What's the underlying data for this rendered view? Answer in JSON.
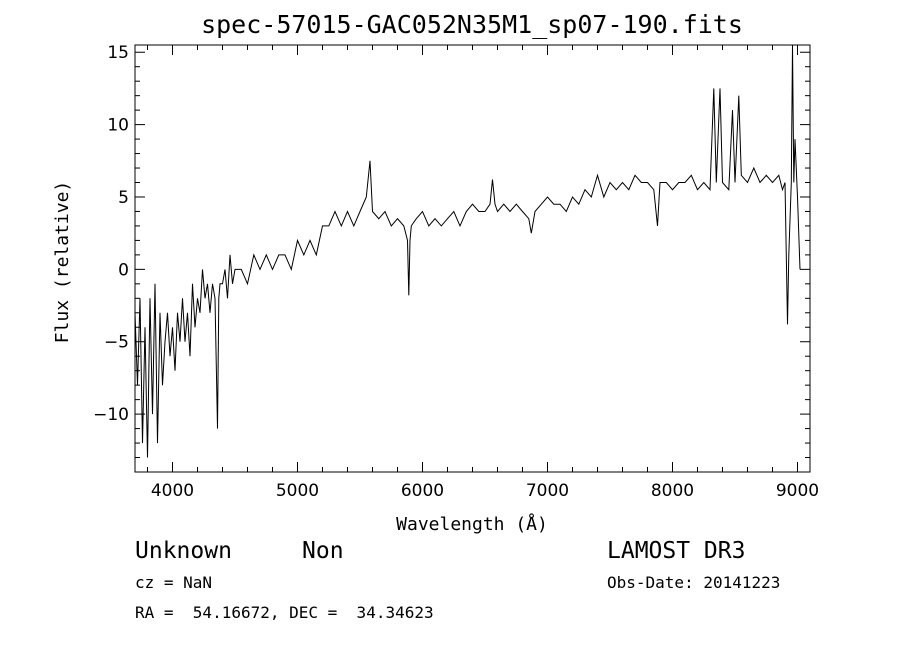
{
  "chart_data": {
    "type": "line",
    "title": "spec-57015-GAC052N35M1_sp07-190.fits",
    "xlabel": "Wavelength (Å)",
    "ylabel": "Flux (relative)",
    "xlim": [
      3700,
      9100
    ],
    "ylim": [
      -14,
      15.5
    ],
    "xticks": [
      4000,
      5000,
      6000,
      7000,
      8000,
      9000
    ],
    "xtick_labels": [
      "4000",
      "5000",
      "6000",
      "7000",
      "8000",
      "9000"
    ],
    "yticks": [
      -10,
      -5,
      0,
      5,
      10,
      15
    ],
    "ytick_labels": [
      "−10",
      "−5",
      "0",
      "5",
      "10",
      "15"
    ],
    "grid": false,
    "line_color": "#000000",
    "series": [
      {
        "x": [
          3700,
          3720,
          3740,
          3760,
          3780,
          3800,
          3820,
          3840,
          3860,
          3880,
          3900,
          3920,
          3940,
          3960,
          3980,
          4000,
          4020,
          4040,
          4060,
          4080,
          4100,
          4120,
          4140,
          4160,
          4180,
          4200,
          4220,
          4240,
          4260,
          4280,
          4300,
          4320,
          4340,
          4360,
          4370,
          4380,
          4400,
          4420,
          4440,
          4460,
          4480,
          4500,
          4550,
          4600,
          4650,
          4700,
          4750,
          4800,
          4850,
          4900,
          4950,
          5000,
          5050,
          5100,
          5150,
          5200,
          5250,
          5300,
          5350,
          5400,
          5450,
          5500,
          5550,
          5580,
          5600,
          5650,
          5700,
          5750,
          5800,
          5850,
          5880,
          5890,
          5900,
          5910,
          5950,
          6000,
          6050,
          6100,
          6150,
          6200,
          6250,
          6300,
          6350,
          6400,
          6450,
          6500,
          6540,
          6560,
          6580,
          6600,
          6650,
          6700,
          6750,
          6800,
          6850,
          6870,
          6900,
          6950,
          7000,
          7050,
          7100,
          7150,
          7200,
          7250,
          7300,
          7350,
          7400,
          7450,
          7500,
          7550,
          7600,
          7650,
          7700,
          7750,
          7800,
          7850,
          7880,
          7900,
          7950,
          8000,
          8050,
          8100,
          8150,
          8200,
          8250,
          8300,
          8330,
          8350,
          8380,
          8400,
          8450,
          8480,
          8500,
          8530,
          8550,
          8600,
          8650,
          8700,
          8750,
          8800,
          8850,
          8880,
          8900,
          8920,
          8930,
          8950,
          8960,
          8970,
          8980,
          9000,
          9020
        ],
        "y": [
          -3,
          -8,
          -2,
          -12,
          -4,
          -13,
          -2,
          -10,
          -1,
          -12,
          -3,
          -8,
          -5,
          -3,
          -6,
          -4,
          -7,
          -3,
          -5,
          -2,
          -5,
          -3,
          -6,
          -1,
          -4,
          -2,
          -3,
          0,
          -2,
          -1,
          -3,
          -1,
          -2,
          -11,
          -2,
          -1,
          -1,
          0,
          -2,
          1,
          -1,
          0,
          0,
          -1,
          1,
          0,
          1,
          0,
          1,
          1,
          0,
          2,
          1,
          2,
          1,
          3,
          3,
          4,
          3,
          4,
          3,
          4,
          5,
          7.5,
          4,
          3.5,
          4,
          3,
          3.5,
          3,
          2,
          -1.8,
          2,
          3,
          3.5,
          4,
          3,
          3.5,
          3,
          3.5,
          4,
          3,
          4,
          4.5,
          4,
          4,
          4.5,
          6.2,
          4.5,
          4,
          4.5,
          4,
          4.5,
          4,
          3.5,
          2.5,
          4,
          4.5,
          5,
          4.5,
          4.5,
          4,
          5,
          4.5,
          5.5,
          5,
          6.5,
          5,
          6,
          5.5,
          6,
          5.5,
          6.5,
          6,
          6,
          5.5,
          3,
          6,
          6,
          5.5,
          6,
          6,
          6.5,
          5.5,
          6,
          5.5,
          12.5,
          6,
          12.5,
          6,
          5.5,
          11,
          6,
          12,
          6.5,
          6,
          7,
          6,
          6.5,
          6,
          6.5,
          5.5,
          6,
          -3.8,
          1,
          6,
          15.5,
          6,
          9,
          5,
          0
        ]
      }
    ]
  },
  "info": {
    "object_class": "Unknown",
    "object_subclass": "Non",
    "redshift": "cz = NaN",
    "coords": "RA =  54.16672, DEC =  34.34623",
    "survey": "LAMOST DR3",
    "obs_date": "Obs-Date: 20141223"
  }
}
